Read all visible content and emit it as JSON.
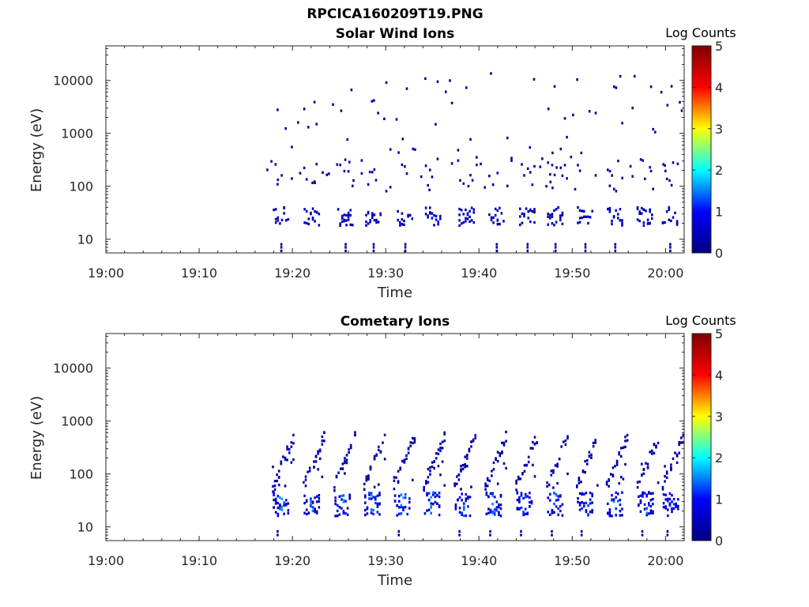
{
  "figure": {
    "title": "RPCICA160209T19.PNG"
  },
  "colormap": {
    "name": "jet",
    "stops": [
      "#000080",
      "#0000ff",
      "#00ffff",
      "#ffff00",
      "#ff0000",
      "#800000"
    ]
  },
  "chart_data": [
    {
      "type": "heatmap",
      "title": "Solar Wind Ions",
      "xlabel": "Time",
      "ylabel": "Energy (eV)",
      "x_ticks": [
        "19:00",
        "19:10",
        "19:20",
        "19:30",
        "19:40",
        "19:50",
        "20:00"
      ],
      "x_tick_minutes": [
        0,
        10,
        20,
        30,
        40,
        50,
        60
      ],
      "xlim_minutes": [
        0,
        62
      ],
      "y_scale": "log",
      "ylim": [
        5.5,
        45000
      ],
      "y_ticks": [
        "10",
        "100",
        "1000",
        "10000"
      ],
      "y_tick_values": [
        10,
        100,
        1000,
        10000
      ],
      "colorbar": {
        "label": "Log Counts",
        "range": [
          0,
          5
        ],
        "ticks": [
          "0",
          "1",
          "2",
          "3",
          "4",
          "5"
        ]
      },
      "data_start_minute": 17.2,
      "features": [
        {
          "name": "sparse high-energy counts",
          "energy_range": [
            300,
            15000
          ],
          "log_counts": [
            0,
            0.5
          ]
        },
        {
          "name": "mid-energy band",
          "energy_range": [
            80,
            350
          ],
          "log_counts": [
            0,
            0.5
          ]
        },
        {
          "name": "periodic low-energy bursts",
          "energy_range": [
            18,
            40
          ],
          "log_counts": [
            0,
            0.6
          ]
        },
        {
          "name": "lowest-energy spikes",
          "energy_range": [
            6,
            9
          ],
          "log_counts": [
            0,
            0.3
          ]
        }
      ],
      "burst_minutes": [
        18.5,
        21.8,
        25.4,
        28.4,
        31.8,
        34.8,
        38.4,
        41.6,
        44.9,
        47.9,
        51.1,
        54.3,
        57.5,
        60.2
      ]
    },
    {
      "type": "heatmap",
      "title": "Cometary Ions",
      "xlabel": "Time",
      "ylabel": "Energy (eV)",
      "x_ticks": [
        "19:00",
        "19:10",
        "19:20",
        "19:30",
        "19:40",
        "19:50",
        "20:00"
      ],
      "x_tick_minutes": [
        0,
        10,
        20,
        30,
        40,
        50,
        60
      ],
      "xlim_minutes": [
        0,
        62
      ],
      "y_scale": "log",
      "ylim": [
        5.5,
        45000
      ],
      "y_ticks": [
        "10",
        "100",
        "1000",
        "10000"
      ],
      "y_tick_values": [
        10,
        100,
        1000,
        10000
      ],
      "colorbar": {
        "label": "Log Counts",
        "range": [
          0,
          5
        ],
        "ticks": [
          "0",
          "1",
          "2",
          "3",
          "4",
          "5"
        ]
      },
      "data_start_minute": 17.2,
      "features": [
        {
          "name": "repeating energy-time dispersion streaks",
          "energy_range": [
            40,
            650
          ],
          "log_counts": [
            0,
            0.6
          ]
        },
        {
          "name": "intense low-energy blobs",
          "energy_range": [
            15,
            45
          ],
          "log_counts": [
            0.5,
            1.8
          ]
        }
      ],
      "burst_minutes": [
        18.2,
        21.5,
        24.8,
        28.0,
        31.2,
        34.4,
        37.7,
        41.0,
        44.3,
        47.6,
        50.8,
        54.0,
        57.3,
        60.0
      ]
    }
  ]
}
